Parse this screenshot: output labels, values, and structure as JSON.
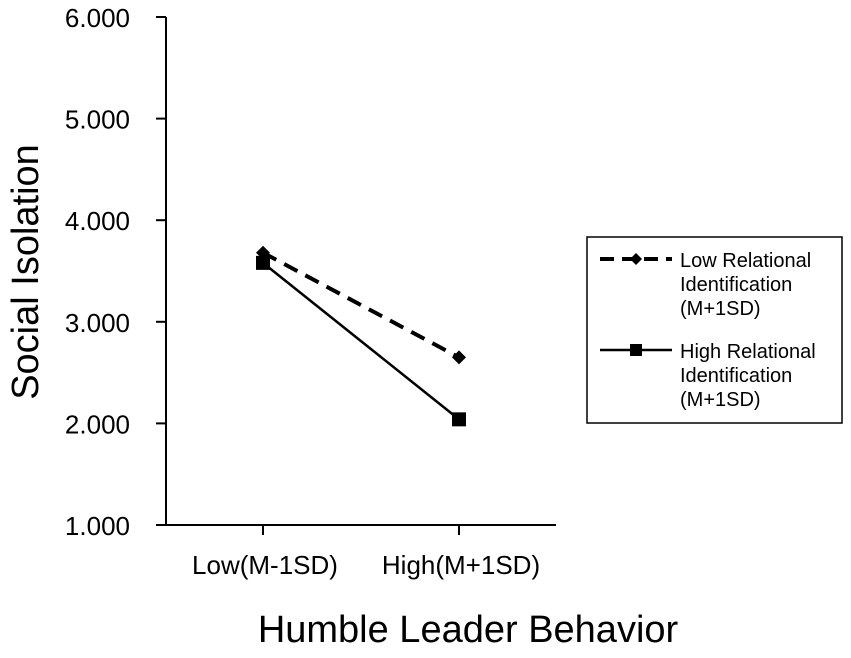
{
  "chart_data": {
    "type": "line",
    "title": "",
    "xlabel": "Humble Leader Behavior",
    "ylabel": "Social Isolation",
    "categories": [
      "Low(M-1SD)",
      "High(M+1SD)"
    ],
    "ylim": [
      1.0,
      6.0
    ],
    "yticks": [
      "1.000",
      "2.000",
      "3.000",
      "4.000",
      "5.000",
      "6.000"
    ],
    "grid": false,
    "legend_position": "right",
    "series": [
      {
        "name_lines": [
          "Low  Relational",
          "Identification",
          "(M+1SD)"
        ],
        "values": [
          3.68,
          2.65
        ],
        "line_style": "dashed",
        "marker": "diamond",
        "color": "#000000"
      },
      {
        "name_lines": [
          "High Relational",
          "Identification",
          "(M+1SD)"
        ],
        "values": [
          3.58,
          2.04
        ],
        "line_style": "solid",
        "marker": "square",
        "color": "#000000"
      }
    ]
  }
}
